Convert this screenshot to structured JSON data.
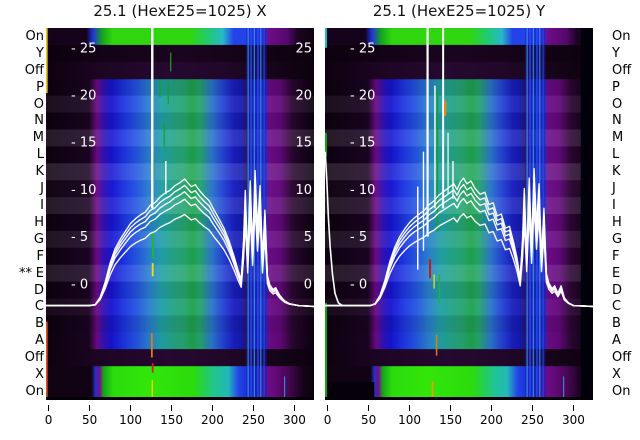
{
  "chart_data": {
    "type": "heatmap_with_line_overlay",
    "grid": false,
    "legend": null,
    "axes": {
      "xlim": [
        -3.2,
        323.9
      ],
      "ylim": [
        -12.3,
        27.1
      ],
      "x_ticks": [
        0,
        50,
        100,
        150,
        200,
        250,
        300
      ],
      "y_ticks": [
        25,
        20,
        15,
        10,
        5,
        0
      ]
    },
    "row_labels": [
      "On",
      "Y",
      "Off",
      "P",
      "O",
      "N",
      "M",
      "L",
      "K",
      "J",
      "I",
      "H",
      "G",
      "F",
      "E",
      "D",
      "C",
      "B",
      "A",
      "Off",
      "X",
      "On"
    ],
    "special_marker": {
      "text": "**",
      "row": "E",
      "row_index": 14
    },
    "curve_color": "#ffffff",
    "tick_text_color": "#ffffff",
    "curve_baseline": -2.3,
    "bundle_scales": [
      0.72,
      0.84,
      0.9,
      0.95,
      1.0
    ],
    "row_shades": [
      -0.1,
      0.06,
      -0.08,
      0.1,
      -0.04,
      0.12,
      0.02,
      0.1,
      -0.06,
      0.08,
      -0.02,
      0.1,
      -0.08,
      0.04,
      -0.1,
      -0.04
    ],
    "special_rows": {
      "0": "on_top",
      "1": "row_y",
      "2": "row_off",
      "19": "row_off",
      "20": "on_bottom",
      "21": "on_bottom"
    },
    "gradients": {
      "body": [
        [
          0,
          "#0e0210"
        ],
        [
          0.16,
          "#1a0522"
        ],
        [
          0.19,
          "#6e0b86"
        ],
        [
          0.215,
          "#3312b4"
        ],
        [
          0.245,
          "#1713d2"
        ],
        [
          0.3,
          "#1e3ce2"
        ],
        [
          0.34,
          "#2456e0"
        ],
        [
          0.385,
          "#2b7fd0"
        ],
        [
          0.43,
          "#22a0a8"
        ],
        [
          0.47,
          "#23a488"
        ],
        [
          0.515,
          "#27a470"
        ],
        [
          0.545,
          "#1ea34e"
        ],
        [
          0.575,
          "#25a46e"
        ],
        [
          0.62,
          "#2a74cc"
        ],
        [
          0.66,
          "#2444d4"
        ],
        [
          0.7,
          "#1a1fc0"
        ],
        [
          0.73,
          "#141ab0"
        ],
        [
          0.75,
          "#2e1060"
        ],
        [
          0.77,
          "#1a23b8"
        ],
        [
          0.815,
          "#202cc8"
        ],
        [
          0.835,
          "#6e0b86"
        ],
        [
          0.875,
          "#60097a"
        ],
        [
          0.92,
          "#2a0730"
        ],
        [
          1,
          "#0c0110"
        ]
      ],
      "on_top": [
        [
          0,
          "#14031a"
        ],
        [
          0.15,
          "#14031a"
        ],
        [
          0.175,
          "#2133dd"
        ],
        [
          0.21,
          "#16a41c"
        ],
        [
          0.25,
          "#2fd60f"
        ],
        [
          0.54,
          "#2fd60f"
        ],
        [
          0.61,
          "#20c878"
        ],
        [
          0.66,
          "#28b8c8"
        ],
        [
          0.7,
          "#2342e8"
        ],
        [
          0.75,
          "#2342e8"
        ],
        [
          0.8,
          "#2440f0"
        ],
        [
          0.835,
          "#6e0b86"
        ],
        [
          0.9,
          "#55086e"
        ],
        [
          0.94,
          "#1c0424"
        ],
        [
          1,
          "#0e020f"
        ]
      ],
      "on_bottom": [
        [
          0,
          "#120314"
        ],
        [
          0.17,
          "#120314"
        ],
        [
          0.185,
          "#2233cc"
        ],
        [
          0.2,
          "#7a0b8a"
        ],
        [
          0.215,
          "#16a41c"
        ],
        [
          0.25,
          "#2bdb0c"
        ],
        [
          0.38,
          "#33e60a"
        ],
        [
          0.55,
          "#2bdb0c"
        ],
        [
          0.63,
          "#1fc490"
        ],
        [
          0.68,
          "#22b8b8"
        ],
        [
          0.72,
          "#2342e8"
        ],
        [
          0.78,
          "#1a23b8"
        ],
        [
          0.835,
          "#6e0b86"
        ],
        [
          0.9,
          "#4a0758"
        ],
        [
          0.96,
          "#16031a"
        ],
        [
          1,
          "#0a010c"
        ]
      ],
      "row_y": [
        [
          0,
          "#0c010e"
        ],
        [
          0.25,
          "#140317"
        ],
        [
          0.5,
          "#1a0520"
        ],
        [
          0.75,
          "#140317"
        ],
        [
          1,
          "#0c010e"
        ]
      ],
      "row_off": [
        [
          0,
          "#0e0110"
        ],
        [
          0.2,
          "#1c0522"
        ],
        [
          0.45,
          "#260830"
        ],
        [
          0.65,
          "#22072a"
        ],
        [
          0.85,
          "#160419"
        ],
        [
          1,
          "#0c010e"
        ]
      ]
    },
    "cluster": [
      {
        "x0": 241,
        "x1": 266,
        "y0": -12.3,
        "y1": 27.1,
        "color": "#1920be",
        "o": 0.45
      },
      {
        "x": 243.5,
        "y0": -12.3,
        "y1": 27.1,
        "color": "#35b9e6",
        "w": 1,
        "o": 0.85
      },
      {
        "x": 247,
        "y0": -12.3,
        "y1": 27.1,
        "color": "#3050ff",
        "w": 1.5,
        "o": 0.8
      },
      {
        "x": 251,
        "y0": -12.3,
        "y1": 27.1,
        "color": "#35b9e6",
        "w": 1,
        "o": 0.85
      },
      {
        "x": 255.5,
        "y0": -12.3,
        "y1": 27.1,
        "color": "#3050ff",
        "w": 1.5,
        "o": 0.8
      },
      {
        "x": 259,
        "y0": -12.3,
        "y1": 27.1,
        "color": "#35b9e6",
        "w": 1,
        "o": 0.85
      },
      {
        "x": 263,
        "y0": -12.3,
        "y1": 27.1,
        "color": "#3050ff",
        "w": 1,
        "o": 0.8
      }
    ],
    "panels": [
      {
        "id": "x",
        "title": "25.1 (HexE25=1025) X",
        "right_tick_labels": true,
        "streaks": [
          {
            "x": -2.4,
            "y0": 20.2,
            "y1": 27.1,
            "color": "#eec414",
            "w": 2
          },
          {
            "x": -2.4,
            "y0": -12.3,
            "y1": -4,
            "color": "#d8540e",
            "w": 2
          },
          {
            "x": 136,
            "y0": 19.8,
            "y1": 21.6,
            "color": "#16a41c",
            "w": 1.5
          },
          {
            "x": 141,
            "y0": 14.5,
            "y1": 17,
            "color": "#16a41c",
            "w": 1.2
          },
          {
            "x": 146,
            "y0": 19,
            "y1": 21.2,
            "color": "#16a41c",
            "w": 1.2
          },
          {
            "x": 149,
            "y0": 22.5,
            "y1": 24.5,
            "color": "#16a41c",
            "w": 1.2
          },
          {
            "x": 128,
            "y0": 11,
            "y1": 13.6,
            "color": "#16a41c",
            "w": 1.5
          },
          {
            "x": 127.5,
            "y0": 2.6,
            "y1": 5.6,
            "color": "#1db92a",
            "w": 1.8
          },
          {
            "x": 127,
            "y0": 0.8,
            "y1": 2.2,
            "color": "#e8e014",
            "w": 1.8
          },
          {
            "x": 126,
            "y0": -7.8,
            "y1": -5.2,
            "color": "#e07c14",
            "w": 1.8
          },
          {
            "x": 127,
            "y0": -9.4,
            "y1": -8.4,
            "color": "#cc2010",
            "w": 1.8
          },
          {
            "x": 126.5,
            "y0": -12.1,
            "y1": -10.2,
            "color": "#d8d80a",
            "w": 1.5
          },
          {
            "x": 288,
            "y0": -12.1,
            "y1": -9.8,
            "color": "#3a7de0",
            "w": 1.2
          },
          {
            "x": 126.5,
            "y0": 8,
            "y1": 27.1,
            "color": "#ffffff",
            "w": 2.4
          },
          {
            "x": 143,
            "y0": 9.5,
            "y1": 13,
            "color": "#ffffff",
            "w": 1.5
          }
        ],
        "curve": [
          [
            -3,
            -2.3
          ],
          [
            50,
            -2.3
          ],
          [
            57,
            -2.2
          ],
          [
            63,
            -1.4
          ],
          [
            69,
            0.2
          ],
          [
            75,
            2.2
          ],
          [
            81,
            3.7
          ],
          [
            88,
            4.8
          ],
          [
            94,
            5.6
          ],
          [
            100,
            6.4
          ],
          [
            106,
            6.9
          ],
          [
            112,
            7.3
          ],
          [
            118,
            7.6
          ],
          [
            124,
            8.3
          ],
          [
            130,
            8.6
          ],
          [
            136,
            9.2
          ],
          [
            142,
            9.6
          ],
          [
            148,
            9.9
          ],
          [
            154,
            10.4
          ],
          [
            160,
            10.7
          ],
          [
            166,
            11.1
          ],
          [
            170,
            10.7
          ],
          [
            174,
            10.3
          ],
          [
            179,
            10.5
          ],
          [
            184,
            9.9
          ],
          [
            190,
            9.3
          ],
          [
            196,
            8.8
          ],
          [
            202,
            7.8
          ],
          [
            208,
            6.9
          ],
          [
            214,
            5.9
          ],
          [
            220,
            4.6
          ],
          [
            226,
            3.0
          ],
          [
            231,
            1.5
          ],
          [
            235,
            0.4
          ],
          [
            238,
            4.6
          ],
          [
            240,
            9.9
          ],
          [
            243,
            2.5
          ],
          [
            246,
            10.9
          ],
          [
            249,
            3.6
          ],
          [
            252,
            12.0
          ],
          [
            255,
            5.7
          ],
          [
            258,
            10.4
          ],
          [
            261,
            2.5
          ],
          [
            264,
            7.8
          ],
          [
            267,
            0.9
          ],
          [
            270,
            -0.1
          ],
          [
            274,
            -0.6
          ],
          [
            277,
            -0.4
          ],
          [
            282,
            -1.2
          ],
          [
            288,
            -1.8
          ],
          [
            294,
            -2.1
          ],
          [
            305,
            -2.3
          ],
          [
            324,
            -2.4
          ]
        ],
        "extra_curves": []
      },
      {
        "id": "y",
        "title": "25.1 (HexE25=1025) Y",
        "right_tick_labels": false,
        "streaks": [
          {
            "x0": 309,
            "x1": 323.9,
            "y0": -12.3,
            "y1": 27.1,
            "color": "#02000a"
          },
          {
            "x0": -3.2,
            "x1": 57,
            "y0": -12.3,
            "y1": -10.4,
            "color": "#05000a"
          },
          {
            "x": -2,
            "y0": -12.3,
            "y1": -2,
            "color": "#17a318",
            "w": 2
          },
          {
            "x": -2,
            "y0": 13.5,
            "y1": 16,
            "color": "#17a318",
            "w": 2
          },
          {
            "x": -2,
            "y0": 25,
            "y1": 27.1,
            "color": "#22b8c8",
            "w": 2
          },
          {
            "x": 134,
            "y0": 5.5,
            "y1": 20.5,
            "color": "#16a41c",
            "w": 1.6
          },
          {
            "x": 136.5,
            "y0": -2,
            "y1": 1,
            "color": "#1db92a",
            "w": 1.5
          },
          {
            "x": 130,
            "y0": -0.5,
            "y1": 1,
            "color": "#d8e010",
            "w": 1.4
          },
          {
            "x": 133,
            "y0": -7.6,
            "y1": -5.4,
            "color": "#e07c14",
            "w": 1.5
          },
          {
            "x": 125,
            "y0": 0.6,
            "y1": 2.6,
            "color": "#cc1810",
            "w": 2
          },
          {
            "x": 128,
            "y0": -12.1,
            "y1": -10.3,
            "color": "#e8a00c",
            "w": 1.6
          },
          {
            "x": 288,
            "y0": -12.1,
            "y1": -9.8,
            "color": "#3a7de0",
            "w": 1.2
          },
          {
            "x": 122,
            "y0": 5,
            "y1": 27.1,
            "color": "#ffffff",
            "w": 2.2
          },
          {
            "x": 141,
            "y0": 8,
            "y1": 27.1,
            "color": "#ffffff",
            "w": 2
          },
          {
            "x": 110,
            "y0": 1.5,
            "y1": 10.3,
            "color": "#ffffff",
            "w": 1.5
          },
          {
            "x": 117,
            "y0": 3.5,
            "y1": 14,
            "color": "#ffffff",
            "w": 1.4
          },
          {
            "x": 131,
            "y0": 8,
            "y1": 21,
            "color": "#ffffff",
            "w": 1.4
          },
          {
            "x": 147,
            "y0": 9.5,
            "y1": 16,
            "color": "#ffffff",
            "w": 1.2
          },
          {
            "x": 153,
            "y0": 9,
            "y1": 13,
            "color": "#ffffff",
            "w": 1.4
          },
          {
            "x": 143.5,
            "y0": 17.8,
            "y1": 19.4,
            "color": "#f08010",
            "w": 2.2
          }
        ],
        "curve": [
          [
            -3,
            -2.3
          ],
          [
            52,
            -2.3
          ],
          [
            58,
            -2.1
          ],
          [
            64,
            -1.2
          ],
          [
            70,
            0.4
          ],
          [
            76,
            2.4
          ],
          [
            82,
            3.9
          ],
          [
            88,
            5.0
          ],
          [
            94,
            5.8
          ],
          [
            100,
            6.5
          ],
          [
            106,
            7.0
          ],
          [
            112,
            7.4
          ],
          [
            118,
            7.8
          ],
          [
            124,
            8.4
          ],
          [
            130,
            8.8
          ],
          [
            136,
            9.4
          ],
          [
            142,
            9.8
          ],
          [
            148,
            10.2
          ],
          [
            154,
            10.6
          ],
          [
            158,
            10.0
          ],
          [
            162,
            10.8
          ],
          [
            166,
            11.2
          ],
          [
            170,
            10.6
          ],
          [
            175,
            10.9
          ],
          [
            180,
            10.1
          ],
          [
            186,
            9.5
          ],
          [
            192,
            9.7
          ],
          [
            197,
            8.4
          ],
          [
            202,
            8.6
          ],
          [
            207,
            7.2
          ],
          [
            212,
            7.4
          ],
          [
            217,
            5.9
          ],
          [
            222,
            6.1
          ],
          [
            227,
            4.4
          ],
          [
            231,
            2.8
          ],
          [
            235,
            0.6
          ],
          [
            238,
            4.8
          ],
          [
            240,
            10.1
          ],
          [
            243,
            2.7
          ],
          [
            246,
            11.2
          ],
          [
            249,
            3.9
          ],
          [
            252,
            12.2
          ],
          [
            255,
            6.0
          ],
          [
            258,
            10.6
          ],
          [
            261,
            2.7
          ],
          [
            264,
            8.0
          ],
          [
            267,
            1.1
          ],
          [
            270,
            0.1
          ],
          [
            274,
            -0.5
          ],
          [
            277,
            -0.2
          ],
          [
            281,
            -1.0
          ],
          [
            285,
            -0.2
          ],
          [
            289,
            -1.5
          ],
          [
            294,
            -2.0
          ],
          [
            300,
            -2.3
          ],
          [
            324,
            -2.4
          ]
        ],
        "extra_curves": [
          [
            [
              -3,
              14
            ],
            [
              -1,
              11
            ],
            [
              1,
              7
            ],
            [
              3,
              4
            ],
            [
              6,
              1
            ],
            [
              9,
              -1
            ],
            [
              13,
              -2
            ],
            [
              18,
              -2.3
            ]
          ]
        ]
      }
    ]
  }
}
